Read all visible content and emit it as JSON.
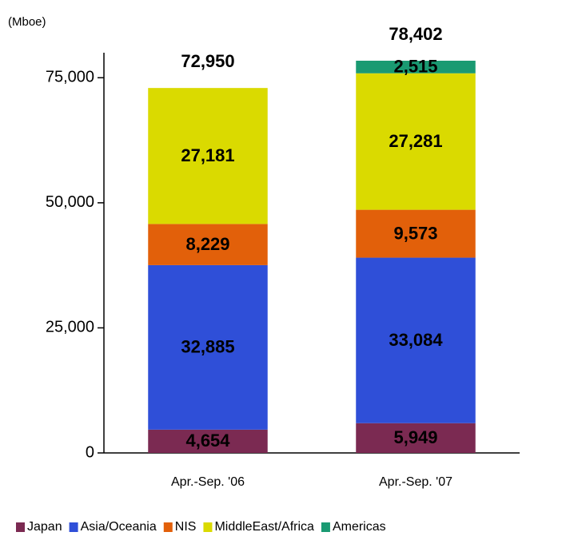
{
  "chart_data": {
    "type": "stacked_bar",
    "unit_label": "(Mboe)",
    "categories": [
      "Apr.-Sep. '06",
      "Apr.-Sep. '07"
    ],
    "series": [
      {
        "name": "Japan",
        "color": "#7b2a52",
        "values": [
          4654,
          5949
        ],
        "value_labels": [
          "4,654",
          "5,949"
        ]
      },
      {
        "name": "Asia/Oceania",
        "color": "#2f4fd8",
        "values": [
          32885,
          33084
        ],
        "value_labels": [
          "32,885",
          "33,084"
        ]
      },
      {
        "name": "NIS",
        "color": "#e2600a",
        "values": [
          8229,
          9573
        ],
        "value_labels": [
          "8,229",
          "9,573"
        ]
      },
      {
        "name": "MiddleEast/Africa",
        "color": "#dada00",
        "values": [
          27181,
          27281
        ],
        "value_labels": [
          "27,181",
          "27,281"
        ]
      },
      {
        "name": "Americas",
        "color": "#1a9a72",
        "values": [
          null,
          2515
        ],
        "value_labels": [
          null,
          "2,515"
        ]
      }
    ],
    "totals": [
      72950,
      78402
    ],
    "total_labels": [
      "72,950",
      "78,402"
    ],
    "ylim": [
      0,
      80000
    ],
    "yticks": [
      0,
      {
        "value": 25000,
        "label": "25,000"
      },
      {
        "value": 50000,
        "label": "50,000"
      },
      {
        "value": 75000,
        "label": "75,000"
      }
    ],
    "grid": false,
    "legend": "bottom"
  }
}
